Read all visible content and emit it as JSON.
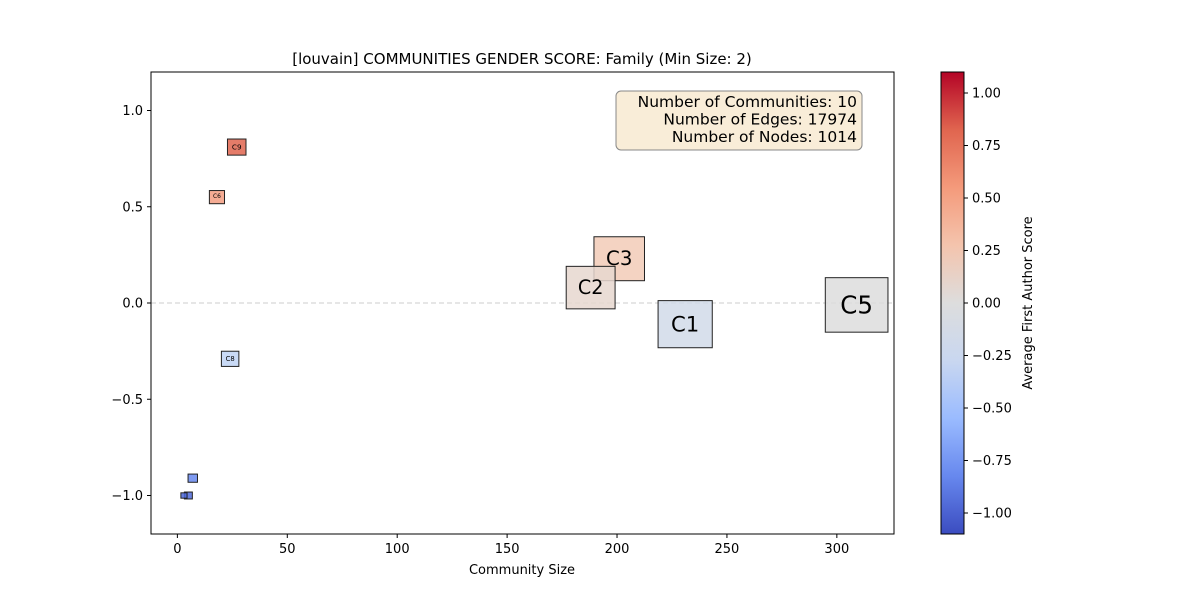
{
  "chart_data": {
    "type": "scatter",
    "title": "[louvain] COMMUNITIES GENDER SCORE: Family (Min Size: 2)",
    "xlabel": "Community Size",
    "ylabel": "",
    "xlim": [
      -12,
      326
    ],
    "ylim": [
      -1.2,
      1.2
    ],
    "xticks": [
      0,
      50,
      100,
      150,
      200,
      250,
      300
    ],
    "yticks": [
      -1.0,
      -0.5,
      0.0,
      0.5,
      1.0
    ],
    "reference_line": {
      "y": 0.0,
      "style": "dashed",
      "color": "#cccccc"
    },
    "info_box": {
      "lines": [
        "Number of Communities: 10",
        "Number of Edges: 17974",
        "Number of Nodes: 1014"
      ],
      "placement": "top-right",
      "background": "#f9edd8"
    },
    "communities": [
      {
        "label": "C5",
        "size": 309,
        "score": -0.01,
        "color": "#dddddd"
      },
      {
        "label": "C1",
        "size": 231,
        "score": -0.11,
        "color": "#d1dae9"
      },
      {
        "label": "C3",
        "size": 201,
        "score": 0.23,
        "color": "#f2cbb7"
      },
      {
        "label": "C2",
        "size": 188,
        "score": 0.08,
        "color": "#e6d7cf"
      },
      {
        "label": "C9",
        "size": 27,
        "score": 0.81,
        "color": "#e0654f"
      },
      {
        "label": "C8",
        "size": 24,
        "score": -0.29,
        "color": "#c0d4f5"
      },
      {
        "label": "C6",
        "size": 18,
        "score": 0.55,
        "color": "#f39d81"
      },
      {
        "label": "",
        "size": 7,
        "score": -0.91,
        "color": "#6788ee"
      },
      {
        "label": "",
        "size": 5,
        "score": -1.0,
        "color": "#4f6ad9"
      },
      {
        "label": "",
        "size": 3,
        "score": -1.0,
        "color": "#4e68d8"
      }
    ],
    "colorbar": {
      "label": "Average First Author Score",
      "range": [
        -1.1,
        1.1
      ],
      "ticks": [
        -1.0,
        -0.75,
        -0.5,
        -0.25,
        0.0,
        0.25,
        0.5,
        0.75,
        1.0
      ],
      "colormap": "coolwarm",
      "stops": [
        "#3b4cc0",
        "#6788ee",
        "#9abbff",
        "#c9d7f0",
        "#dddddd",
        "#f4c4ad",
        "#f49a7b",
        "#e0654f",
        "#b40426"
      ]
    },
    "grid": false
  }
}
